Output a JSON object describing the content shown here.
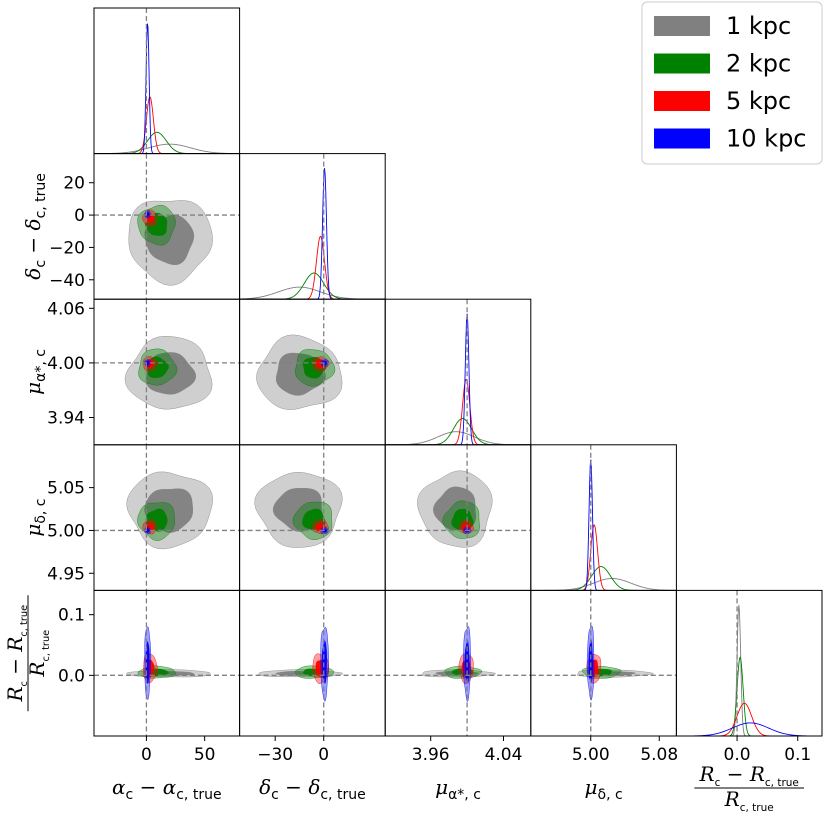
{
  "chart_data": {
    "type": "corner",
    "parameters": [
      {
        "key": "alpha",
        "label": "α_c − α_c,true",
        "true_value": 0,
        "ticks": [
          {
            "v": 0,
            "t": "0"
          },
          {
            "v": 50,
            "t": "50"
          }
        ],
        "range": [
          -45,
          80
        ]
      },
      {
        "key": "delta",
        "label": "δ_c − δ_c,true",
        "true_value": 0,
        "ticks": [
          {
            "v": -30,
            "t": "−30"
          },
          {
            "v": 0,
            "t": "0"
          }
        ],
        "yticks": [
          {
            "v": 20,
            "t": "20"
          },
          {
            "v": 0,
            "t": "0"
          },
          {
            "v": -20,
            "t": "−20"
          },
          {
            "v": -40,
            "t": "−40"
          }
        ],
        "range": [
          -52,
          38
        ]
      },
      {
        "key": "mua",
        "label": "μ_α*,c",
        "true_value": 4.0,
        "ticks": [
          {
            "v": 3.96,
            "t": "3.96"
          },
          {
            "v": 4.04,
            "t": "4.04"
          }
        ],
        "yticks": [
          {
            "v": 4.06,
            "t": "4.06"
          },
          {
            "v": 4.0,
            "t": "4.00"
          },
          {
            "v": 3.94,
            "t": "3.94"
          }
        ],
        "range": [
          3.91,
          4.07
        ]
      },
      {
        "key": "mud",
        "label": "μ_δ,c",
        "true_value": 5.0,
        "ticks": [
          {
            "v": 5.0,
            "t": "5.00"
          },
          {
            "v": 5.08,
            "t": "5.08"
          }
        ],
        "yticks": [
          {
            "v": 5.05,
            "t": "5.05"
          },
          {
            "v": 5.0,
            "t": "5.00"
          },
          {
            "v": 4.95,
            "t": "4.95"
          }
        ],
        "range": [
          4.93,
          5.1
        ]
      },
      {
        "key": "rc",
        "label": "(R_c − R_c,true) / R_c,true",
        "true_value": 0,
        "ticks": [
          {
            "v": 0.0,
            "t": "0.0"
          },
          {
            "v": 0.1,
            "t": "0.1"
          }
        ],
        "yticks": [
          {
            "v": 0.1,
            "t": "0.1"
          },
          {
            "v": 0.0,
            "t": "0.0"
          }
        ],
        "range": [
          -0.1,
          0.14
        ]
      }
    ],
    "series": [
      {
        "name": "1 kpc",
        "color": "#808080",
        "fill": "#808080",
        "mean": [
          20,
          -15,
          3.988,
          5.025,
          0.003
        ],
        "sigma": [
          18,
          13,
          0.02,
          0.022,
          0.003
        ]
      },
      {
        "name": "2 kpc",
        "color": "#008000",
        "fill": "#008000",
        "mean": [
          9,
          -6,
          3.995,
          5.012,
          0.005
        ],
        "sigma": [
          8,
          6,
          0.01,
          0.011,
          0.005
        ]
      },
      {
        "name": "5 kpc",
        "color": "#ff0000",
        "fill": "#ff0000",
        "mean": [
          3,
          -2,
          3.999,
          5.004,
          0.012
        ],
        "sigma": [
          3,
          2.5,
          0.004,
          0.004,
          0.012
        ]
      },
      {
        "name": "10 kpc",
        "color": "#0000ff",
        "fill": "#0000ff",
        "mean": [
          1,
          0.5,
          4.0,
          5.0,
          0.022
        ],
        "sigma": [
          1.3,
          1.2,
          0.002,
          0.002,
          0.03
        ]
      }
    ],
    "axis_labels": {
      "alpha": {
        "main": "α",
        "sub": "c",
        "minus": " − ",
        "main2": "α",
        "sub2": "c, true"
      },
      "delta": {
        "main": "δ",
        "sub": "c",
        "minus": " − ",
        "main2": "δ",
        "sub2": "c, true"
      },
      "mua": {
        "main": "μ",
        "sub": "α*, c"
      },
      "mud": {
        "main": "μ",
        "sub": "δ, c"
      },
      "rc_num": {
        "main": "R",
        "sub": "c",
        "minus": " − ",
        "main2": "R",
        "sub2": "c, true"
      },
      "rc_den": {
        "main": "R",
        "sub": "c, true"
      }
    },
    "legend": {
      "position": "top-right",
      "entries": [
        "1 kpc",
        "2 kpc",
        "5 kpc",
        "10 kpc"
      ]
    },
    "reference_lines": "dashed gray at true values"
  }
}
